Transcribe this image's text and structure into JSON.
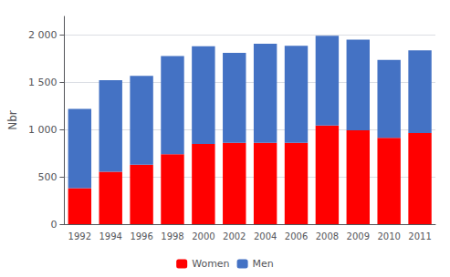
{
  "chart_data": {
    "type": "bar",
    "stacked": true,
    "categories": [
      "1992",
      "1994",
      "1996",
      "1998",
      "2000",
      "2002",
      "2004",
      "2006",
      "2008",
      "2009",
      "2010",
      "2011"
    ],
    "series": [
      {
        "name": "Women",
        "color": "#ff0000",
        "values": [
          380,
          555,
          630,
          740,
          850,
          860,
          860,
          860,
          1045,
          995,
          915,
          965
        ]
      },
      {
        "name": "Men",
        "color": "#4472c4",
        "values": [
          840,
          970,
          940,
          1040,
          1035,
          955,
          1050,
          1030,
          950,
          960,
          825,
          875
        ]
      }
    ],
    "ylabel": "Nbr",
    "ylim": [
      0,
      2200
    ],
    "yticks": [
      0,
      500,
      {
        "value": 1000,
        "label": "1 000"
      },
      {
        "value": 1500,
        "label": "1 500"
      },
      {
        "value": 2000,
        "label": "2 000"
      }
    ],
    "grid": true,
    "legend": "bottom"
  }
}
